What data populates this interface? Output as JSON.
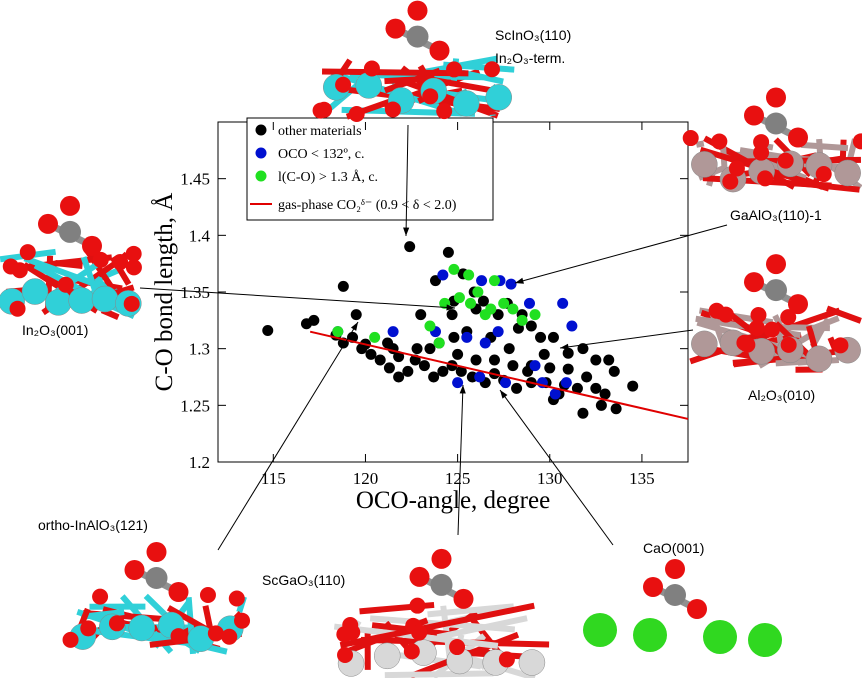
{
  "chart_data": {
    "type": "scatter",
    "xlabel": "OCO-angle, degree",
    "ylabel": "C-O bond length, Å",
    "xlim": [
      112,
      137.5
    ],
    "ylim": [
      1.2,
      1.5
    ],
    "xticks": [
      115,
      120,
      125,
      130,
      135
    ],
    "yticks": [
      1.2,
      1.25,
      1.3,
      1.35,
      1.4,
      1.45
    ],
    "legend": "upper left",
    "series": [
      {
        "name": "other materials",
        "color": "#000000",
        "x": [
          114.7,
          116.8,
          117.2,
          118.8,
          120,
          119.5,
          121.5,
          121.8,
          122.4,
          123,
          123.8,
          124.5,
          124.7,
          124.8,
          125.3,
          125.9,
          126.4,
          127.2,
          127.7,
          128.5,
          129,
          129.5,
          130.2,
          131,
          131.8,
          132.5,
          133.2,
          133.5,
          134.5,
          133.6,
          131.8,
          130.5,
          129.8,
          129,
          128.2,
          127.5,
          127,
          126.5,
          125.8,
          125.2,
          124.7,
          124.2,
          123.7,
          123.2,
          122.7,
          122.3,
          121.8,
          121.3,
          120.8,
          120.3,
          119.8,
          119.3,
          118.8,
          118.4,
          123.5,
          124,
          125,
          126,
          127,
          128,
          129,
          130,
          131,
          132,
          132.5,
          133,
          130.8,
          128.8,
          127.8,
          126.8,
          125.5,
          126,
          124.8,
          122.8,
          121.2,
          128.3,
          129.7,
          131.5,
          132.8,
          130.2
        ],
        "y": [
          1.316,
          1.322,
          1.325,
          1.355,
          1.304,
          1.33,
          1.3,
          1.293,
          1.39,
          1.33,
          1.36,
          1.385,
          1.33,
          1.342,
          1.366,
          1.35,
          1.342,
          1.33,
          1.34,
          1.33,
          1.32,
          1.31,
          1.31,
          1.296,
          1.3,
          1.29,
          1.29,
          1.28,
          1.267,
          1.247,
          1.243,
          1.26,
          1.27,
          1.27,
          1.265,
          1.272,
          1.278,
          1.27,
          1.275,
          1.28,
          1.285,
          1.28,
          1.275,
          1.285,
          1.29,
          1.28,
          1.275,
          1.283,
          1.29,
          1.295,
          1.3,
          1.31,
          1.305,
          1.312,
          1.3,
          1.305,
          1.295,
          1.29,
          1.29,
          1.285,
          1.285,
          1.283,
          1.282,
          1.275,
          1.265,
          1.26,
          1.268,
          1.28,
          1.3,
          1.31,
          1.315,
          1.335,
          1.31,
          1.3,
          1.305,
          1.318,
          1.295,
          1.265,
          1.25,
          1.255
        ]
      },
      {
        "name": "OCO < 132º, c.",
        "color": "#0010d0",
        "x": [
          118.5,
          124.2,
          125.5,
          126.3,
          127.3,
          127.9,
          128.9,
          130.7,
          131.2,
          121.5,
          123.8,
          125,
          126.2,
          127.6,
          129.2,
          130.3,
          130.9,
          129.6,
          126.5,
          127.2
        ],
        "y": [
          1.315,
          1.365,
          1.31,
          1.36,
          1.36,
          1.357,
          1.34,
          1.34,
          1.32,
          1.315,
          1.315,
          1.27,
          1.275,
          1.27,
          1.285,
          1.26,
          1.27,
          1.27,
          1.305,
          1.315
        ]
      },
      {
        "name": "l(C-O) > 1.3 Å, c.",
        "color": "#20e020",
        "x": [
          118.5,
          120.5,
          123.5,
          124.3,
          124.8,
          125.6,
          126.1,
          126.5,
          127,
          127.5,
          128,
          128.5,
          129.2,
          124,
          125.7,
          126.8,
          125.1
        ],
        "y": [
          1.315,
          1.31,
          1.32,
          1.34,
          1.37,
          1.365,
          1.35,
          1.33,
          1.36,
          1.34,
          1.335,
          1.325,
          1.33,
          1.305,
          1.34,
          1.335,
          1.345
        ]
      },
      {
        "name": "gas-phase CO₂ᵟ⁻ (0.9 < δ < 2.0)",
        "color": "#e00000",
        "type": "line",
        "x": [
          117,
          137.5
        ],
        "y": [
          1.315,
          1.238
        ]
      }
    ],
    "annotations": [
      {
        "text": "ScInO₃(110)"
      },
      {
        "text": "In₂O₃-term."
      },
      {
        "text": "GaAlO₃(110)-1"
      },
      {
        "text": "In₂O₃(001)"
      },
      {
        "text": "Al₂O₃(010)"
      },
      {
        "text": "ortho-InAlO₃(121)"
      },
      {
        "text": "ScGaO₃(110)"
      },
      {
        "text": "CaO(001)"
      }
    ]
  }
}
